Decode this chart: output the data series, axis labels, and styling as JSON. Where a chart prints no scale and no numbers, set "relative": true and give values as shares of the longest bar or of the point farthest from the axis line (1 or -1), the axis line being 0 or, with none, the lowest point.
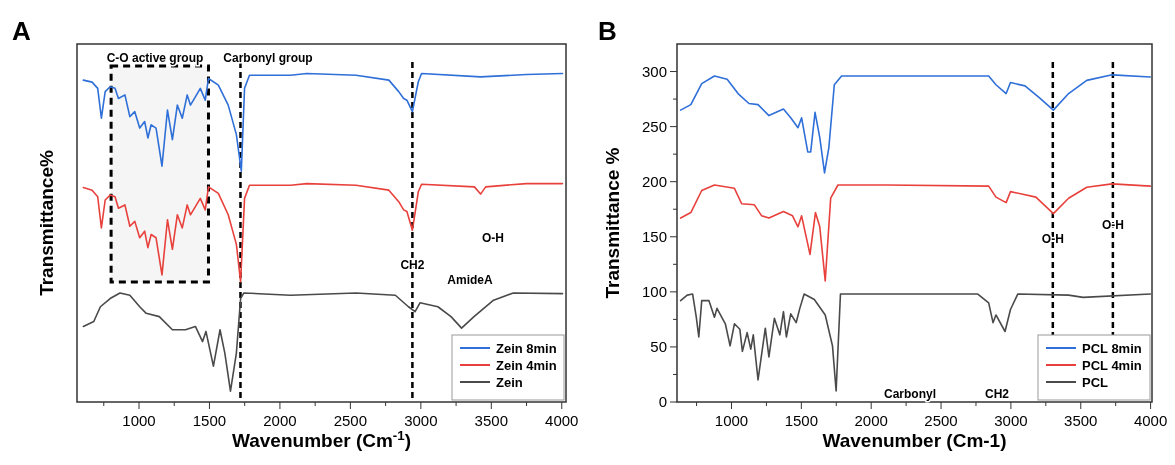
{
  "chart_data": [
    {
      "type": "line",
      "title": "A",
      "xlabel": "Wavenumber (Cm$^{-1}$)",
      "ylabel": "Transmittance%",
      "relative": true,
      "tick_labels": "x",
      "legend": "bottom right",
      "xlim": [
        560,
        4030
      ],
      "xticks": [
        {
          "value": 750,
          "label": null
        },
        1000,
        {
          "value": 1250,
          "label": null
        },
        1500,
        {
          "value": 1750,
          "label": null
        },
        2000,
        {
          "value": 2250,
          "label": null
        },
        2500,
        {
          "value": 2750,
          "label": null
        },
        3000,
        {
          "value": 3250,
          "label": null
        },
        3500,
        {
          "value": 3750,
          "label": null
        },
        4000
      ],
      "series": [
        {
          "name": "Zein 8min",
          "color": "#2f6fd8",
          "x": [
            605,
            667,
            707,
            733,
            760,
            795,
            830,
            854,
            900,
            935,
            970,
            1005,
            1040,
            1063,
            1086,
            1121,
            1163,
            1202,
            1237,
            1272,
            1307,
            1342,
            1365,
            1400,
            1435,
            1470,
            1493,
            1563,
            1633,
            1691,
            1726,
            1749,
            1784,
            2075,
            2191,
            2540,
            2773,
            2843,
            2878,
            2901,
            2940,
            2982,
            3005,
            3424,
            3749,
            4005
          ],
          "values": [
            0.98,
            0.974,
            0.955,
            0.864,
            0.945,
            0.96,
            0.955,
            0.924,
            0.935,
            0.869,
            0.884,
            0.834,
            0.854,
            0.804,
            0.844,
            0.834,
            0.718,
            0.889,
            0.799,
            0.904,
            0.864,
            0.935,
            0.904,
            0.929,
            0.955,
            0.919,
            0.985,
            0.965,
            0.904,
            0.814,
            0.703,
            0.955,
            0.995,
            0.995,
            1.0,
            0.995,
            0.98,
            0.945,
            0.924,
            0.919,
            0.884,
            0.975,
            1.0,
            0.99,
            0.997,
            1.0
          ]
        },
        {
          "name": "Zein 4min",
          "color": "#e8413c",
          "x": [
            605,
            667,
            707,
            733,
            760,
            795,
            830,
            854,
            900,
            935,
            970,
            1005,
            1040,
            1063,
            1086,
            1121,
            1163,
            1202,
            1237,
            1272,
            1307,
            1342,
            1365,
            1400,
            1435,
            1470,
            1493,
            1563,
            1633,
            1691,
            1721,
            1749,
            1784,
            2075,
            2191,
            2540,
            2773,
            2843,
            2878,
            2901,
            2940,
            2982,
            3005,
            3380,
            3424,
            3460,
            3749,
            4005
          ],
          "values": [
            0.653,
            0.645,
            0.625,
            0.53,
            0.615,
            0.63,
            0.625,
            0.59,
            0.6,
            0.535,
            0.55,
            0.5,
            0.52,
            0.47,
            0.51,
            0.5,
            0.387,
            0.555,
            0.465,
            0.57,
            0.53,
            0.6,
            0.57,
            0.595,
            0.62,
            0.585,
            0.655,
            0.635,
            0.57,
            0.48,
            0.366,
            0.62,
            0.66,
            0.66,
            0.665,
            0.66,
            0.645,
            0.61,
            0.585,
            0.58,
            0.523,
            0.64,
            0.663,
            0.655,
            0.633,
            0.655,
            0.665,
            0.665
          ]
        },
        {
          "name": "Zein",
          "color": "#4a4a4a",
          "x": [
            605,
            679,
            726,
            795,
            865,
            935,
            1005,
            1051,
            1144,
            1237,
            1330,
            1400,
            1451,
            1475,
            1528,
            1575,
            1609,
            1649,
            1691,
            1721,
            1744,
            2075,
            2540,
            2819,
            2912,
            2959,
            2994,
            3121,
            3214,
            3289,
            3377,
            3516,
            3656,
            4005
          ],
          "values": [
            0.23,
            0.245,
            0.29,
            0.315,
            0.332,
            0.325,
            0.29,
            0.27,
            0.26,
            0.22,
            0.22,
            0.23,
            0.184,
            0.215,
            0.109,
            0.22,
            0.149,
            0.033,
            0.149,
            0.315,
            0.332,
            0.325,
            0.332,
            0.325,
            0.29,
            0.275,
            0.302,
            0.29,
            0.26,
            0.225,
            0.26,
            0.31,
            0.332,
            0.33
          ]
        }
      ],
      "ref_lines": [
        {
          "axis": "x",
          "value": 1720,
          "color": "#000000",
          "line_style": "dashed"
        },
        {
          "axis": "x",
          "value": 2940,
          "color": "#000000",
          "line_style": "dashed"
        }
      ],
      "bands": [
        {
          "axis": "x",
          "from": 802,
          "to": 1493,
          "color": "#000000"
        }
      ],
      "annotations": [
        "C-O active group",
        "Carbonyl group",
        {
          "text": "CH2",
          "x": 2940,
          "y": 0.405
        },
        "O-H",
        "AmideA"
      ]
    },
    {
      "type": "line",
      "title": "B",
      "xlabel": "Wavenumber (Cm-1)",
      "ylabel": "Transmittance %",
      "legend": "bottom right",
      "xlim": [
        610,
        4010
      ],
      "ylim": [
        0,
        325
      ],
      "xticks": [
        {
          "value": 750,
          "label": null
        },
        1000,
        {
          "value": 1250,
          "label": null
        },
        1500,
        {
          "value": 1750,
          "label": null
        },
        2000,
        {
          "value": 2250,
          "label": null
        },
        2500,
        {
          "value": 2750,
          "label": null
        },
        3000,
        {
          "value": 3250,
          "label": null
        },
        3500,
        {
          "value": 3750,
          "label": null
        },
        4000
      ],
      "yticks": [
        0,
        {
          "value": 25,
          "label": null
        },
        50,
        {
          "value": 75,
          "label": null
        },
        100,
        {
          "value": 125,
          "label": null
        },
        150,
        {
          "value": 175,
          "label": null
        },
        200,
        {
          "value": 225,
          "label": null
        },
        250,
        {
          "value": 275,
          "label": null
        },
        300
      ],
      "series": [
        {
          "name": "PCL 8min",
          "color": "#2f6fd8",
          "x": [
            636,
            709,
            787,
            878,
            969,
            1047,
            1125,
            1190,
            1268,
            1372,
            1424,
            1476,
            1502,
            1546,
            1567,
            1598,
            1632,
            1666,
            1697,
            1736,
            1788,
            2113,
            2373,
            2841,
            2893,
            2966,
            2997,
            3101,
            3205,
            3304,
            3413,
            3543,
            3725,
            3998
          ],
          "values": [
            265,
            270,
            289,
            296,
            293,
            280,
            271,
            270,
            260,
            266,
            258,
            249,
            258,
            227,
            227,
            263,
            240,
            208,
            231,
            288,
            296,
            296,
            296,
            296,
            288,
            280,
            290,
            287,
            276,
            265,
            280,
            292,
            297,
            295
          ]
        },
        {
          "name": "PCL 4min",
          "color": "#e8413c",
          "x": [
            636,
            709,
            787,
            878,
            1021,
            1073,
            1164,
            1216,
            1268,
            1372,
            1437,
            1476,
            1502,
            1562,
            1601,
            1632,
            1671,
            1710,
            1762,
            2113,
            2841,
            2893,
            2966,
            2997,
            3179,
            3304,
            3413,
            3543,
            3725,
            3998
          ],
          "values": [
            167,
            172,
            192,
            197,
            194,
            180,
            179,
            169,
            167,
            173,
            169,
            159,
            169,
            134,
            172,
            159,
            110,
            185,
            197,
            197,
            196,
            186,
            181,
            191,
            186,
            171,
            185,
            195,
            198,
            196
          ]
        },
        {
          "name": "PCL",
          "color": "#4a4a4a",
          "x": [
            636,
            683,
            722,
            748,
            766,
            787,
            839,
            878,
            896,
            956,
            990,
            1021,
            1060,
            1078,
            1112,
            1138,
            1156,
            1190,
            1242,
            1268,
            1307,
            1346,
            1372,
            1393,
            1424,
            1463,
            1489,
            1520,
            1593,
            1671,
            1723,
            1749,
            1780,
            2113,
            2763,
            2841,
            2872,
            2893,
            2958,
            2997,
            3049,
            3413,
            3517,
            3998
          ],
          "values": [
            92,
            97,
            98,
            77,
            59,
            92,
            92,
            77,
            85,
            71,
            51,
            71,
            66,
            46,
            63,
            48,
            61,
            20,
            67,
            41,
            76,
            61,
            82,
            59,
            80,
            72,
            85,
            98,
            93,
            79,
            51,
            10,
            98,
            98,
            98,
            90,
            72,
            79,
            64,
            84,
            98,
            97,
            95,
            98
          ]
        }
      ],
      "ref_lines": [
        {
          "axis": "x",
          "value": 3300,
          "color": "#000000",
          "line_style": "dashed"
        },
        {
          "axis": "x",
          "value": 3730,
          "color": "#000000",
          "line_style": "dashed"
        }
      ],
      "annotations": [
        {
          "text": "O-H",
          "x": 3300,
          "y": 144
        },
        {
          "text": "O-H",
          "x": 3730,
          "y": 157
        },
        "CH2",
        "Carbonyl"
      ]
    }
  ]
}
